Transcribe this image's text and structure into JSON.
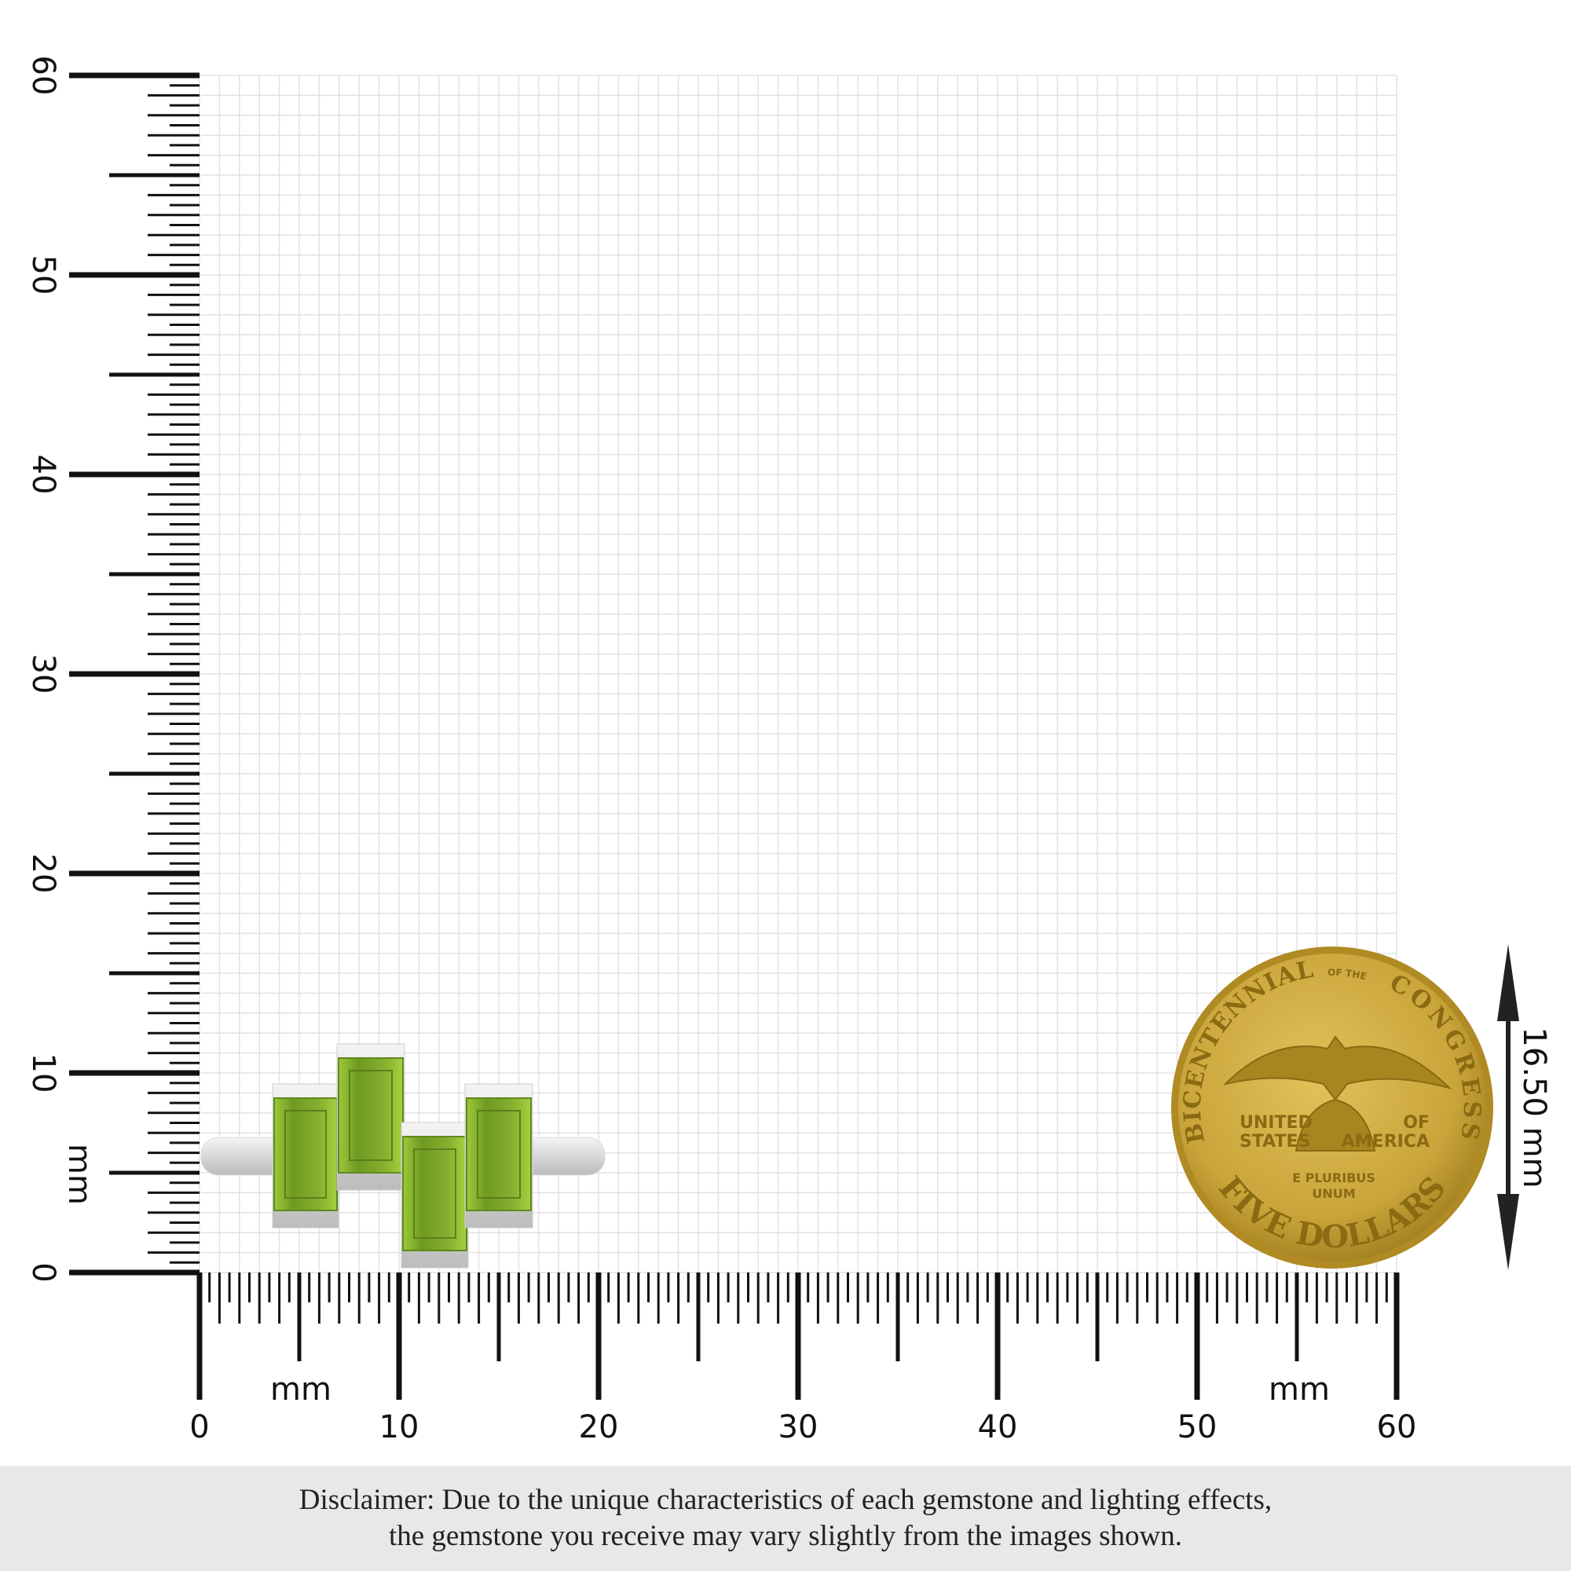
{
  "ruler": {
    "unit_label": "mm",
    "horizontal_tick_labels": [
      "0",
      "10",
      "20",
      "30",
      "40",
      "50",
      "60"
    ],
    "vertical_tick_labels": [
      "0",
      "10",
      "20",
      "30",
      "40",
      "50",
      "60"
    ],
    "range_mm": [
      0,
      60
    ]
  },
  "coin": {
    "top_text": "BICENTENNIAL",
    "of_the": "OF THE",
    "right_text": "CONGRESS",
    "left_words": [
      "UNITED",
      "STATES"
    ],
    "right_words": [
      "OF",
      "AMERICA"
    ],
    "motto": [
      "E PLURIBUS",
      "UNUM"
    ],
    "bottom_text": "FIVE DOLLARS",
    "color": "#c9a43a"
  },
  "dimension": {
    "label": "16.50 mm"
  },
  "gem_color": "#7aa62a",
  "disclaimer": {
    "line1": "Disclaimer: Due to the unique characteristics of each gemstone and lighting effects,",
    "line2": "the gemstone you receive may vary slightly from the images shown."
  }
}
